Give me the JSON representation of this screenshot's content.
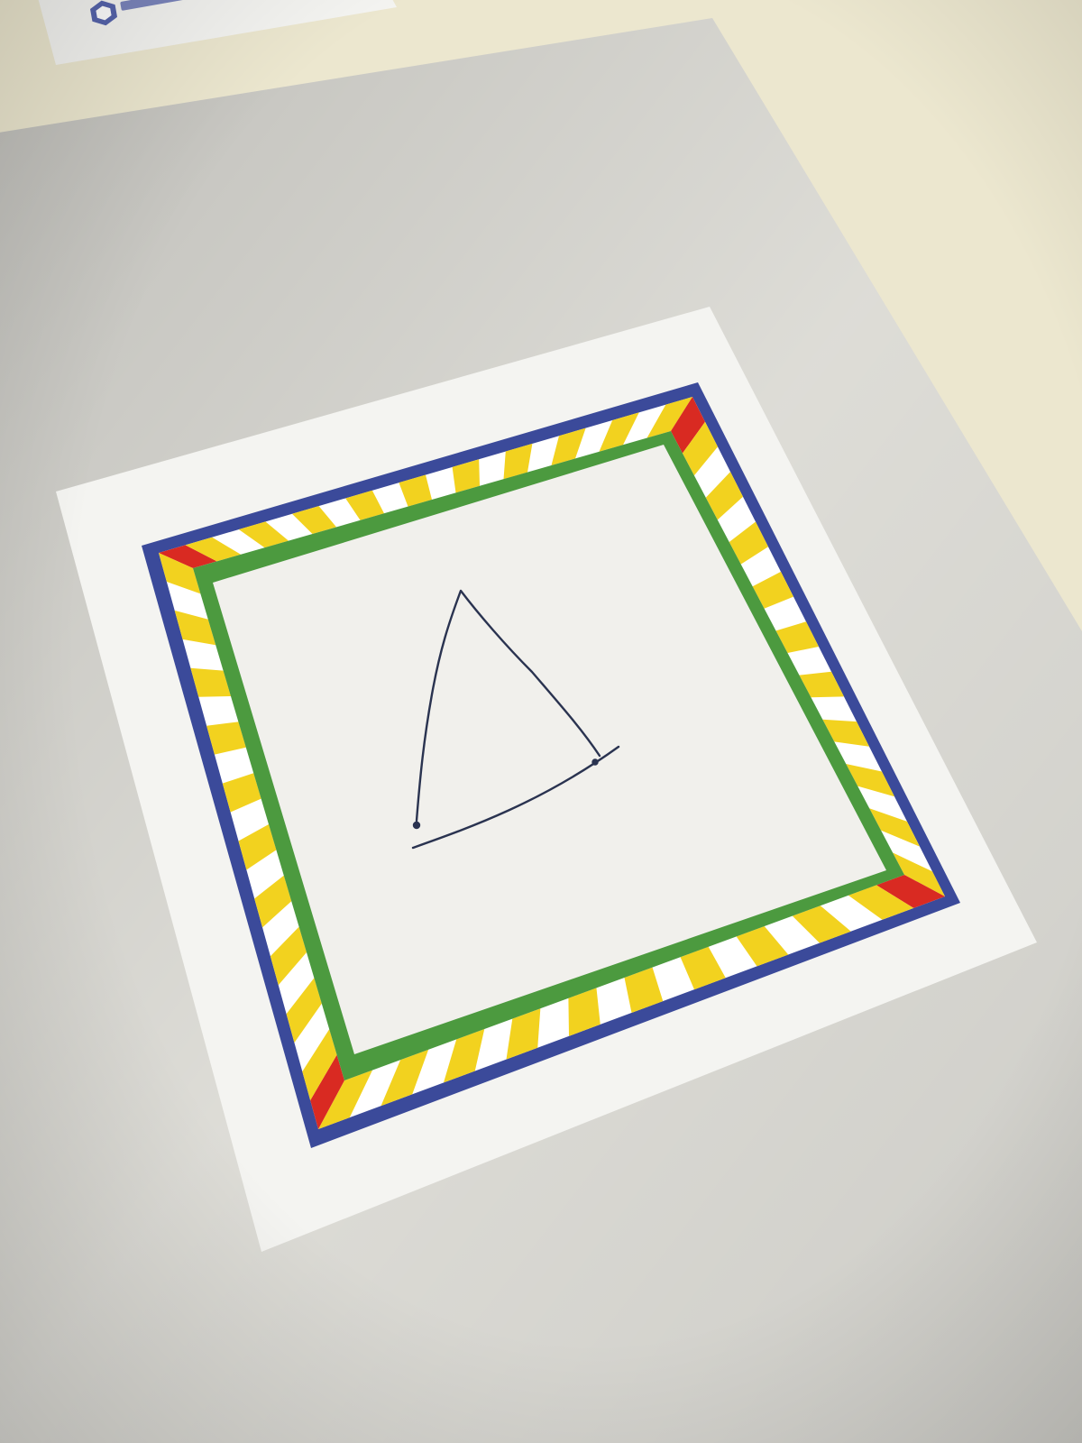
{
  "scene": {
    "description_tag": "photo",
    "colors": {
      "tabletop": "#ece7cf",
      "paper": "#e9e8e2",
      "card": "#f4f4f1",
      "frame_outer": "#3b4a9a",
      "frame_checker_yellow": "#f2d21f",
      "frame_checker_white": "#ffffff",
      "frame_corner_red": "#d92a22",
      "frame_inner": "#4c9a3f",
      "window": "#f1f0ec",
      "ink": "#2a3350",
      "logo": "#3a4aa0"
    },
    "drawing": {
      "shape": "triangle",
      "medium": "pen"
    }
  }
}
